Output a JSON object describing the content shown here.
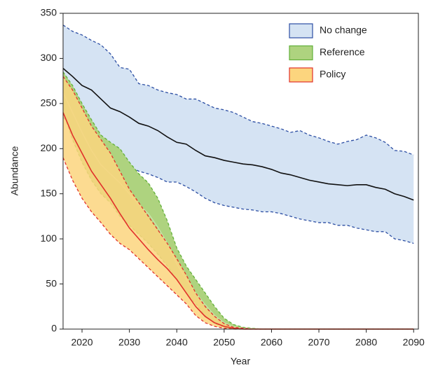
{
  "chart_data": {
    "type": "band-line",
    "x_label": "Year",
    "y_label": "Abundance",
    "x": [
      2016,
      2018,
      2020,
      2022,
      2024,
      2026,
      2028,
      2030,
      2032,
      2034,
      2036,
      2038,
      2040,
      2042,
      2044,
      2046,
      2048,
      2050,
      2052,
      2054,
      2056,
      2058,
      2060,
      2062,
      2064,
      2066,
      2068,
      2070,
      2072,
      2074,
      2076,
      2078,
      2080,
      2082,
      2084,
      2086,
      2088,
      2090
    ],
    "xlim": [
      2016,
      2091
    ],
    "xticks": [
      2020,
      2030,
      2040,
      2050,
      2060,
      2070,
      2080,
      2090
    ],
    "ylim": [
      0,
      350
    ],
    "yticks": [
      0,
      50,
      100,
      150,
      200,
      250,
      300,
      350
    ],
    "legend": "upper right",
    "series": [
      {
        "name": "No change",
        "color": "#2c4ea3",
        "fill": "#d5e3f3",
        "mean_color": "#111111",
        "values": [
          289,
          280,
          270,
          265,
          255,
          245,
          241,
          235,
          228,
          225,
          220,
          213,
          207,
          205,
          198,
          192,
          190,
          187,
          185,
          183,
          182,
          180,
          177,
          173,
          171,
          168,
          165,
          163,
          161,
          160,
          159,
          160,
          160,
          157,
          155,
          150,
          147,
          143
        ],
        "upper": [
          337,
          330,
          326,
          320,
          315,
          305,
          290,
          288,
          272,
          270,
          265,
          262,
          260,
          255,
          255,
          250,
          245,
          243,
          240,
          235,
          230,
          228,
          225,
          222,
          218,
          220,
          215,
          212,
          208,
          205,
          208,
          210,
          215,
          212,
          207,
          198,
          197,
          193
        ],
        "lower": [
          235,
          222,
          210,
          200,
          193,
          188,
          186,
          180,
          175,
          172,
          168,
          163,
          163,
          158,
          152,
          145,
          140,
          137,
          135,
          133,
          132,
          130,
          130,
          128,
          125,
          122,
          120,
          118,
          118,
          115,
          115,
          112,
          110,
          108,
          108,
          100,
          98,
          95
        ]
      },
      {
        "name": "Reference",
        "color": "#62b03a",
        "fill": "#aed37f",
        "mean_color": "#c7e2a6",
        "values": [
          262,
          240,
          218,
          198,
          182,
          172,
          162,
          150,
          138,
          128,
          113,
          95,
          72,
          55,
          40,
          27,
          15,
          7,
          2.5,
          1,
          0.5,
          0,
          0,
          0,
          0,
          0,
          0,
          0,
          0,
          0,
          0,
          0,
          0,
          0,
          0,
          0,
          0,
          0
        ],
        "upper": [
          285,
          270,
          250,
          232,
          215,
          207,
          200,
          185,
          172,
          162,
          145,
          120,
          90,
          70,
          55,
          40,
          25,
          12,
          5,
          2,
          1,
          0,
          0,
          0,
          0,
          0,
          0,
          0,
          0,
          0,
          0,
          0,
          0,
          0,
          0,
          0,
          0,
          0
        ],
        "lower": [
          240,
          210,
          185,
          165,
          150,
          140,
          125,
          115,
          105,
          95,
          83,
          70,
          55,
          40,
          28,
          15,
          6,
          2,
          0,
          0,
          0,
          0,
          0,
          0,
          0,
          0,
          0,
          0,
          0,
          0,
          0,
          0,
          0,
          0,
          0,
          0,
          0,
          0
        ]
      },
      {
        "name": "Policy",
        "color": "#e1302b",
        "fill": "#fcd57e",
        "mean_color": "#e1302b",
        "values": [
          240,
          215,
          195,
          175,
          160,
          145,
          128,
          112,
          100,
          88,
          77,
          67,
          55,
          40,
          25,
          14,
          7,
          3,
          1,
          0,
          0,
          0,
          0,
          0,
          0,
          0,
          0,
          0,
          0,
          0,
          0,
          0,
          0,
          0,
          0,
          0,
          0,
          0
        ],
        "upper": [
          280,
          265,
          245,
          225,
          210,
          195,
          175,
          155,
          140,
          125,
          110,
          95,
          78,
          60,
          40,
          25,
          14,
          6,
          2,
          1,
          0,
          0,
          0,
          0,
          0,
          0,
          0,
          0,
          0,
          0,
          0,
          0,
          0,
          0,
          0,
          0,
          0,
          0
        ],
        "lower": [
          190,
          165,
          145,
          130,
          118,
          105,
          95,
          88,
          78,
          68,
          58,
          48,
          38,
          28,
          15,
          7,
          3,
          1,
          0,
          0,
          0,
          0,
          0,
          0,
          0,
          0,
          0,
          0,
          0,
          0,
          0,
          0,
          0,
          0,
          0,
          0,
          0,
          0
        ]
      }
    ]
  }
}
